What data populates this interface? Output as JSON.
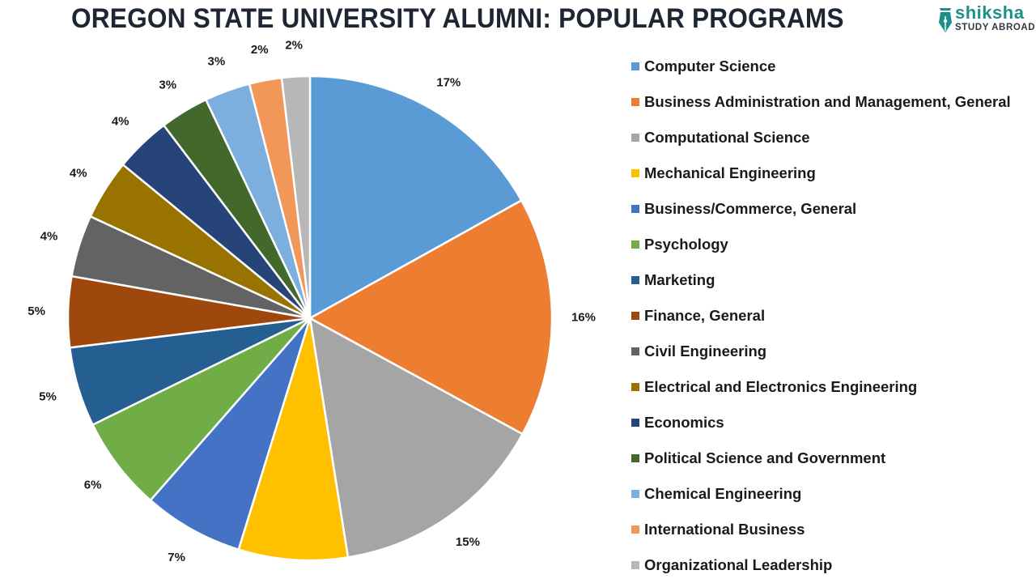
{
  "header": {
    "title": "OREGON STATE UNIVERSITY ALUMNI: POPULAR PROGRAMS"
  },
  "logo": {
    "brand": "shiksha",
    "subtitle": "STUDY ABROAD",
    "icon": "pen-nib-icon",
    "color": "#1d8f8a"
  },
  "chart_data": {
    "type": "pie",
    "title": "OREGON STATE UNIVERSITY ALUMNI: POPULAR PROGRAMS",
    "legend_position": "right",
    "start_angle_deg": 0,
    "direction": "clockwise",
    "categories": [
      "Computer Science",
      "Business Administration and Management, General",
      "Computational Science",
      "Mechanical Engineering",
      "Business/Commerce, General",
      "Psychology",
      "Marketing",
      "Finance, General",
      "Civil Engineering",
      "Electrical and Electronics Engineering",
      "Economics",
      "Political Science and Government",
      "Chemical Engineering",
      "International Business",
      "Organizational Leadership"
    ],
    "values": [
      17,
      16,
      15,
      7,
      7,
      6,
      5,
      5,
      4,
      4,
      4,
      3,
      3,
      2,
      2
    ],
    "slice_weights": [
      17.2,
      16.3,
      14.8,
      7.4,
      6.8,
      6.4,
      5.4,
      4.8,
      4.2,
      4.1,
      3.8,
      3.3,
      3.1,
      2.2,
      1.9
    ],
    "labels": [
      "17%",
      "16%",
      "15%",
      "7%",
      "7%",
      "6%",
      "5%",
      "5%",
      "4%",
      "4%",
      "4%",
      "3%",
      "3%",
      "2%",
      "2%"
    ],
    "colors": [
      "#5b9bd5",
      "#ed7d31",
      "#a5a5a5",
      "#ffc000",
      "#4472c4",
      "#70ad47",
      "#255e91",
      "#9e480e",
      "#636363",
      "#997300",
      "#264478",
      "#43682b",
      "#7cafdd",
      "#f1975a",
      "#b7b7b7"
    ]
  }
}
